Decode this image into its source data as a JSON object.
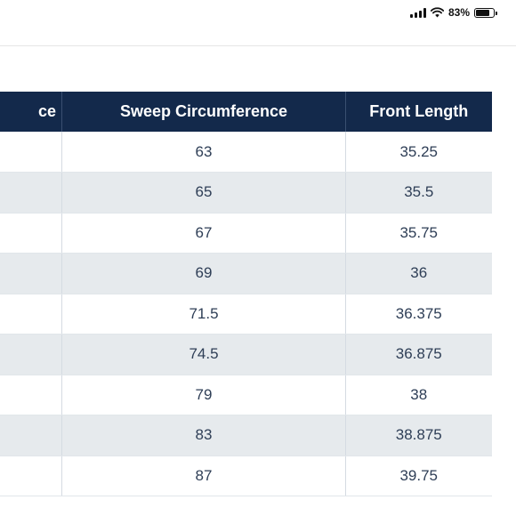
{
  "status_bar": {
    "battery_percent": "83%",
    "battery_level": 0.83,
    "icons": [
      "signal-icon",
      "wifi-icon",
      "battery-icon"
    ]
  },
  "table": {
    "headers": [
      "ce",
      "Sweep Circumference",
      "Front Length"
    ],
    "rows": [
      {
        "sweep": "63",
        "front": "35.25"
      },
      {
        "sweep": "65",
        "front": "35.5"
      },
      {
        "sweep": "67",
        "front": "35.75"
      },
      {
        "sweep": "69",
        "front": "36"
      },
      {
        "sweep": "71.5",
        "front": "36.375"
      },
      {
        "sweep": "74.5",
        "front": "36.875"
      },
      {
        "sweep": "79",
        "front": "38"
      },
      {
        "sweep": "83",
        "front": "38.875"
      },
      {
        "sweep": "87",
        "front": "39.75"
      }
    ]
  },
  "colors": {
    "header_bg": "#13294b",
    "header_text": "#ffffff",
    "row_alt_bg": "#e6eaed",
    "cell_text": "#2e3e56"
  }
}
